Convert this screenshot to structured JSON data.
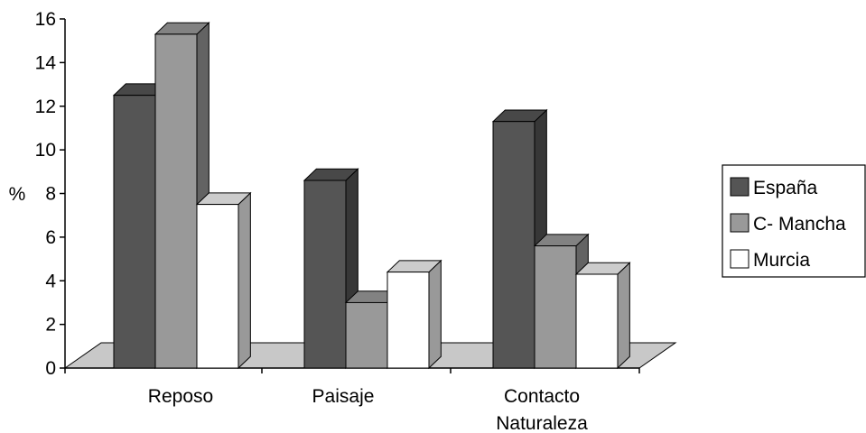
{
  "chart_data": {
    "type": "bar",
    "title": "",
    "xlabel": "",
    "ylabel": "%",
    "ylim": [
      0,
      16
    ],
    "yticks": [
      0,
      2,
      4,
      6,
      8,
      10,
      12,
      14,
      16
    ],
    "categories": [
      "Reposo",
      "Paisaje",
      "Contacto Naturaleza"
    ],
    "category_lines": [
      [
        "Reposo"
      ],
      [
        "Paisaje"
      ],
      [
        "Contacto",
        "Naturaleza"
      ]
    ],
    "series": [
      {
        "name": "España",
        "values": [
          12.5,
          8.6,
          11.3
        ],
        "color": "#555555"
      },
      {
        "name": "C- Mancha",
        "values": [
          15.3,
          3.0,
          5.6
        ],
        "color": "#999999"
      },
      {
        "name": "Murcia",
        "values": [
          7.5,
          4.4,
          4.3
        ],
        "color": "#ffffff"
      }
    ],
    "floor_color": "#c8c8c8",
    "grid": false,
    "legend_position": "right",
    "style": "3d-clustered-column"
  }
}
